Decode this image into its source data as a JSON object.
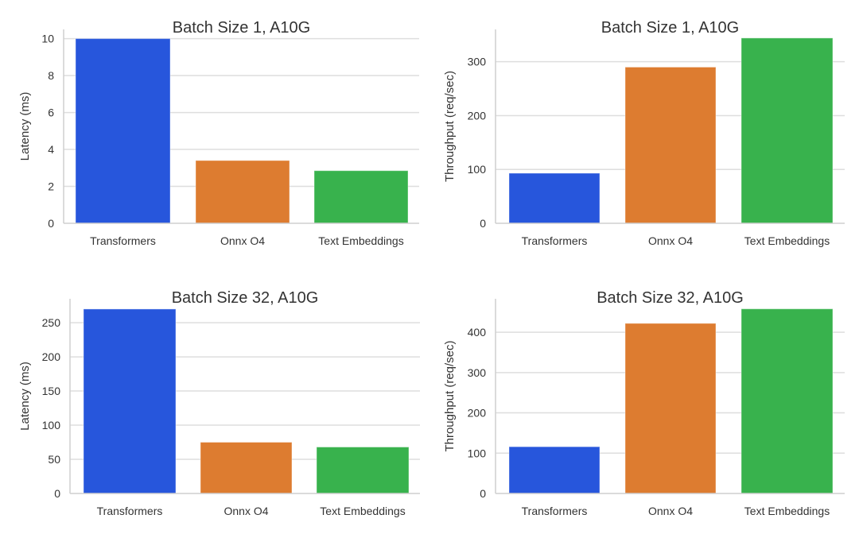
{
  "chart_data": [
    {
      "type": "bar",
      "title": "Batch Size 1, A10G",
      "xlabel": "",
      "ylabel": "Latency (ms)",
      "categories": [
        "Transformers",
        "Onnx O4",
        "Text Embeddings"
      ],
      "values": [
        10.0,
        3.4,
        2.85
      ],
      "ylim": [
        0,
        10.5
      ],
      "yticks": [
        0,
        2,
        4,
        6,
        8,
        10
      ],
      "grid": true
    },
    {
      "type": "bar",
      "title": "Batch Size 1, A10G",
      "xlabel": "",
      "ylabel": "Throughput (req/sec)",
      "categories": [
        "Transformers",
        "Onnx O4",
        "Text Embeddings"
      ],
      "values": [
        93,
        290,
        344
      ],
      "ylim": [
        0,
        360
      ],
      "yticks": [
        0,
        100,
        200,
        300
      ],
      "grid": true
    },
    {
      "type": "bar",
      "title": "Batch Size 32, A10G",
      "xlabel": "",
      "ylabel": "Latency (ms)",
      "categories": [
        "Transformers",
        "Onnx O4",
        "Text Embeddings"
      ],
      "values": [
        270,
        75,
        68
      ],
      "ylim": [
        0,
        285
      ],
      "yticks": [
        0,
        50,
        100,
        150,
        200,
        250
      ],
      "grid": true
    },
    {
      "type": "bar",
      "title": "Batch Size 32, A10G",
      "xlabel": "",
      "ylabel": "Throughput (req/sec)",
      "categories": [
        "Transformers",
        "Onnx O4",
        "Text Embeddings"
      ],
      "values": [
        116,
        422,
        458
      ],
      "ylim": [
        0,
        483
      ],
      "yticks": [
        0,
        100,
        200,
        300,
        400
      ],
      "grid": true
    }
  ],
  "colors": [
    "#2756dc",
    "#dd7c30",
    "#38b24d"
  ]
}
